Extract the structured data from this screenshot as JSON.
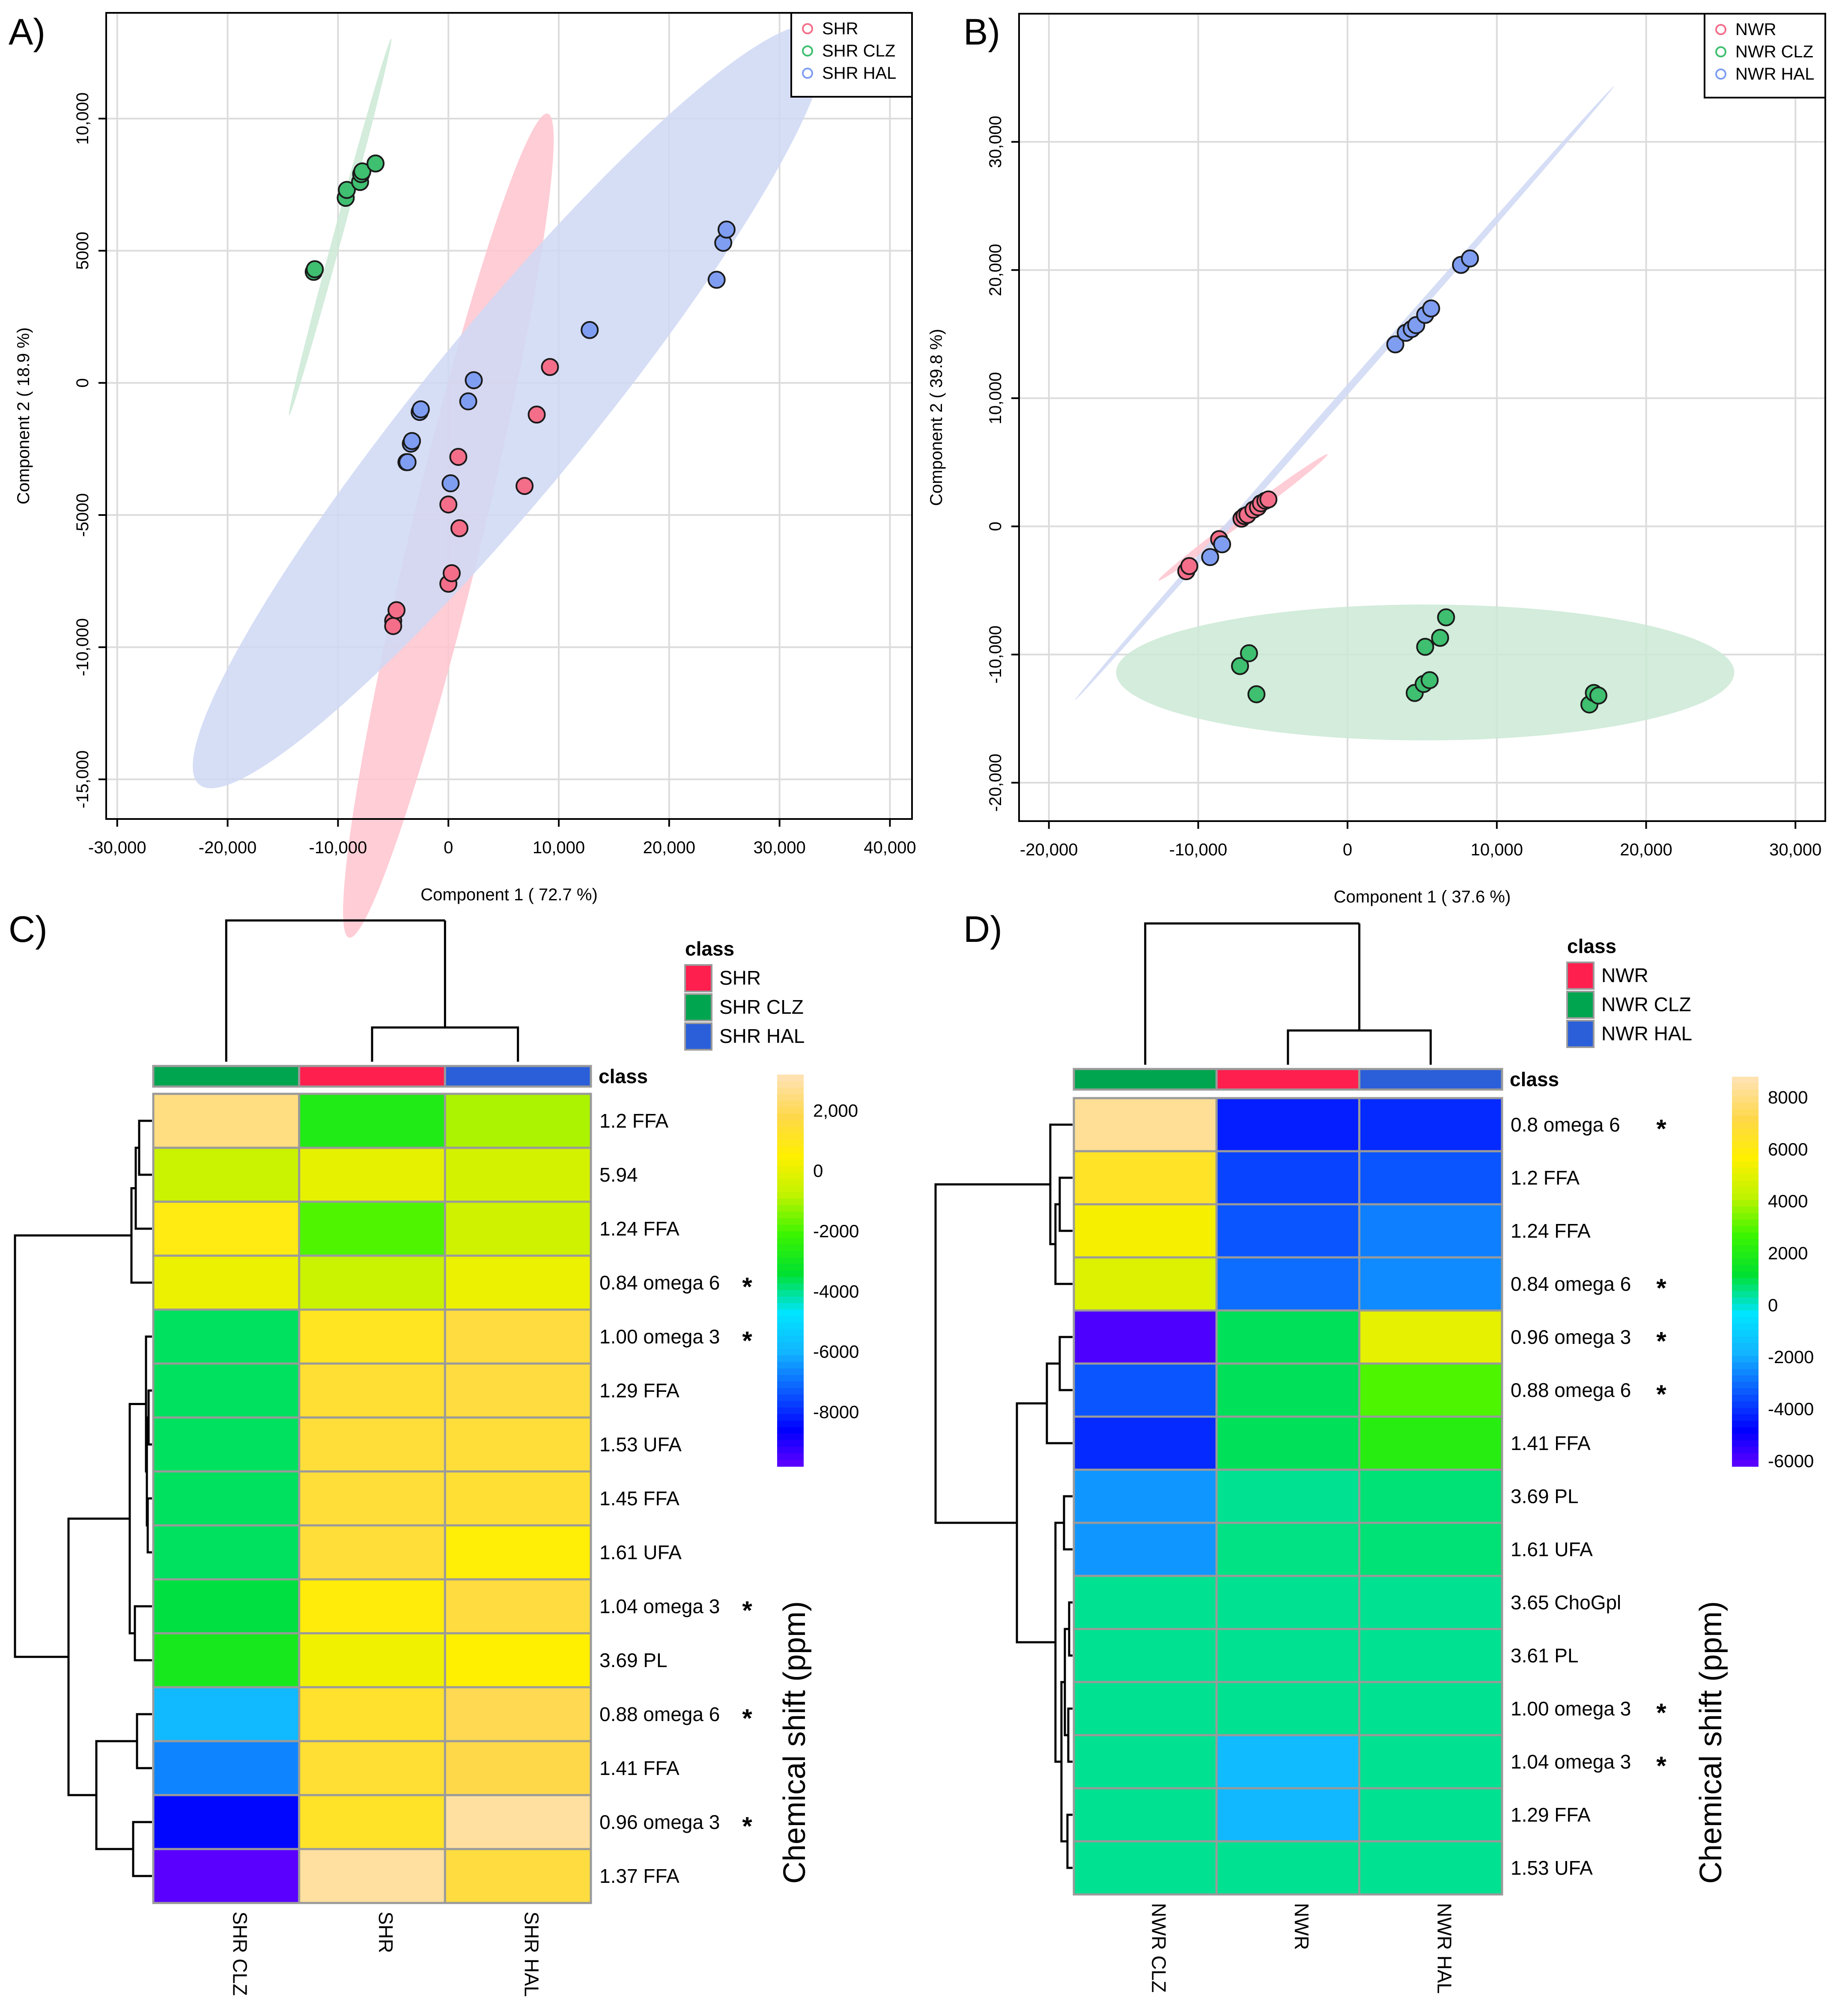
{
  "colors": {
    "red": "#ff1f4e",
    "green": "#00a54f",
    "blue": "#2b5fd9",
    "red_pt": "#f46e8a",
    "green_pt": "#3fbf70",
    "blue_pt": "#7f9ef2",
    "red_ell": "#ffc4cf",
    "green_ell": "#cbe9d5",
    "blue_ell": "#cfd8f4",
    "heat": [
      "#6a00ff",
      "#0000ff",
      "#0b5bff",
      "#12b5ff",
      "#00e5ff",
      "#00e030",
      "#3bf500",
      "#bff300",
      "#fff000",
      "#ffd84a",
      "#ffe2b0"
    ]
  },
  "chart_data": [
    {
      "panel": "A)",
      "type": "scatter",
      "xlabel": "Component 1 ( 72.7 %)",
      "ylabel": "Component 2 ( 18.9 %)",
      "xlim": [
        -31000,
        42000
      ],
      "ylim": [
        -16500,
        14000
      ],
      "xticks": [
        -30000,
        -20000,
        -10000,
        0,
        10000,
        20000,
        30000,
        40000
      ],
      "xtick_labels": [
        "-30,000",
        "-20,000",
        "-10,000",
        "0",
        "10,000",
        "20,000",
        "30,000",
        "40,000"
      ],
      "yticks": [
        -15000,
        -10000,
        -5000,
        0,
        5000,
        10000
      ],
      "ytick_labels": [
        "-15,000",
        "-10,000",
        "-5000",
        "0",
        "5000",
        "10,000"
      ],
      "legend_position": "top-right",
      "series": [
        {
          "name": "SHR",
          "color": "#f46e8a",
          "points": [
            [
              -5000,
              -9000
            ],
            [
              -5000,
              -9200
            ],
            [
              -4700,
              -8600
            ],
            [
              0,
              -7600
            ],
            [
              300,
              -7200
            ],
            [
              1000,
              -5500
            ],
            [
              0,
              -4600
            ],
            [
              900,
              -2800
            ],
            [
              6900,
              -3900
            ],
            [
              8000,
              -1200
            ],
            [
              9200,
              600
            ]
          ],
          "ellipse": {
            "center": [
              0,
              -5400
            ],
            "radius_along": 18000,
            "radius_across": 2900,
            "angle_deg": 60
          }
        },
        {
          "name": "SHR CLZ",
          "color": "#3fbf70",
          "points": [
            [
              -12200,
              4200
            ],
            [
              -12100,
              4300
            ],
            [
              -9300,
              7000
            ],
            [
              -9200,
              7300
            ],
            [
              -8000,
              7600
            ],
            [
              -7900,
              7900
            ],
            [
              -7800,
              8000
            ],
            [
              -6600,
              8300
            ]
          ],
          "ellipse": {
            "center": [
              -9800,
              5900
            ],
            "radius_along": 8500,
            "radius_across": 350,
            "angle_deg": 57
          }
        },
        {
          "name": "SHR HAL",
          "color": "#7f9ef2",
          "points": [
            [
              -3800,
              -3000
            ],
            [
              -3700,
              -3000
            ],
            [
              -3400,
              -2300
            ],
            [
              -3300,
              -2200
            ],
            [
              -2600,
              -1100
            ],
            [
              -2500,
              -1000
            ],
            [
              200,
              -3800
            ],
            [
              1800,
              -700
            ],
            [
              2300,
              100
            ],
            [
              12800,
              2000
            ],
            [
              24300,
              3900
            ],
            [
              24900,
              5300
            ],
            [
              25200,
              5800
            ]
          ],
          "ellipse": {
            "center": [
              5500,
              -900
            ],
            "radius_along": 31500,
            "radius_across": 4400,
            "angle_deg": 27
          }
        }
      ]
    },
    {
      "panel": "B)",
      "type": "scatter",
      "xlabel": "Component 1 ( 37.6 %)",
      "ylabel": "Component 2 ( 39.8 %)",
      "xlim": [
        -22000,
        32000
      ],
      "ylim": [
        -23000,
        40000
      ],
      "xticks": [
        -20000,
        -10000,
        0,
        10000,
        20000,
        30000
      ],
      "xtick_labels": [
        "-20,000",
        "-10,000",
        "0",
        "10,000",
        "20,000",
        "30,000"
      ],
      "yticks": [
        -20000,
        -10000,
        0,
        10000,
        20000,
        30000
      ],
      "ytick_labels": [
        "-20,000",
        "-10,000",
        "0",
        "10,000",
        "20,000",
        "30,000"
      ],
      "legend_position": "top-right",
      "series": [
        {
          "name": "NWR",
          "color": "#f46e8a",
          "points": [
            [
              -10800,
              -3500
            ],
            [
              -10600,
              -3100
            ],
            [
              -8600,
              -1000
            ],
            [
              -7100,
              600
            ],
            [
              -6900,
              800
            ],
            [
              -6700,
              900
            ],
            [
              -6300,
              1300
            ],
            [
              -6000,
              1500
            ],
            [
              -5800,
              1800
            ],
            [
              -5500,
              2000
            ],
            [
              -5300,
              2100
            ]
          ],
          "ellipse": {
            "center": [
              -7000,
              700
            ],
            "radius_along": 7500,
            "radius_across": 350,
            "angle_deg": 41
          }
        },
        {
          "name": "NWR CLZ",
          "color": "#3fbf70",
          "points": [
            [
              -7200,
              -10900
            ],
            [
              -6600,
              -9900
            ],
            [
              -6100,
              -13100
            ],
            [
              4500,
              -13000
            ],
            [
              5100,
              -12300
            ],
            [
              5500,
              -12000
            ],
            [
              5200,
              -9400
            ],
            [
              6200,
              -8700
            ],
            [
              6600,
              -7100
            ],
            [
              16200,
              -13900
            ],
            [
              16500,
              -13000
            ],
            [
              16800,
              -13200
            ]
          ],
          "ellipse": {
            "center": [
              5200,
              -11400
            ],
            "radius_along": 20700,
            "radius_across": 5300,
            "angle_deg": 0
          }
        },
        {
          "name": "NWR HAL",
          "color": "#7f9ef2",
          "points": [
            [
              -9200,
              -2400
            ],
            [
              -8400,
              -1400
            ],
            [
              3200,
              14200
            ],
            [
              3900,
              15100
            ],
            [
              4300,
              15400
            ],
            [
              4600,
              15700
            ],
            [
              5200,
              16500
            ],
            [
              5600,
              17000
            ],
            [
              7600,
              20400
            ],
            [
              8200,
              20900
            ]
          ],
          "ellipse": {
            "center": [
              -200,
              10400
            ],
            "radius_along": 30000,
            "radius_across": 250,
            "angle_deg": 53
          }
        }
      ]
    },
    {
      "panel": "C)",
      "type": "heatmap",
      "class_title": "class",
      "legend_entries": [
        {
          "name": "SHR",
          "color": "#ff1f4e"
        },
        {
          "name": "SHR CLZ",
          "color": "#00a54f"
        },
        {
          "name": "SHR HAL",
          "color": "#2b5fd9"
        }
      ],
      "columns": [
        "SHR CLZ",
        "SHR",
        "SHR HAL"
      ],
      "column_classes": [
        "#00a54f",
        "#ff1f4e",
        "#2b5fd9"
      ],
      "rows": [
        "1.2 FFA",
        "5.94",
        "1.24 FFA",
        "0.84 omega 6",
        "1.00 omega 3",
        "1.29 FFA",
        "1.53 UFA",
        "1.45 FFA",
        "1.61 UFA",
        "1.04 omega 3",
        "3.69 PL",
        "0.88 omega 6",
        "1.41 FFA",
        "0.96 omega 3",
        "1.37 FFA"
      ],
      "significant": [
        false,
        false,
        false,
        true,
        true,
        false,
        false,
        false,
        false,
        true,
        false,
        true,
        false,
        true,
        false
      ],
      "values": [
        [
          2600,
          -2600,
          -900
        ],
        [
          -500,
          100,
          -300
        ],
        [
          900,
          -1800,
          -400
        ],
        [
          200,
          -500,
          200
        ],
        [
          -3600,
          1200,
          1700
        ],
        [
          -3600,
          1500,
          1700
        ],
        [
          -3600,
          1600,
          1600
        ],
        [
          -3600,
          1600,
          1500
        ],
        [
          -3600,
          1600,
          700
        ],
        [
          -3400,
          800,
          1700
        ],
        [
          -2800,
          300,
          600
        ],
        [
          -5800,
          1400,
          2000
        ],
        [
          -6600,
          1500,
          1900
        ],
        [
          -8400,
          1300,
          3000
        ],
        [
          -9600,
          3000,
          1700
        ]
      ],
      "colorbar": {
        "min": -9800,
        "max": 3200,
        "ticks": [
          2000,
          0,
          -2000,
          -4000,
          -6000,
          -8000
        ],
        "tick_labels": [
          "2,000",
          "0",
          "-2000",
          "-4000",
          "-6000",
          "-8000"
        ]
      },
      "ylabel": "Chemical shift (ppm)",
      "col_dendrogram": {
        "merge_groups": [
          [
            1,
            2
          ],
          [
            0,
            "12"
          ]
        ]
      },
      "row_dendrogram": "hierarchical"
    },
    {
      "panel": "D)",
      "type": "heatmap",
      "class_title": "class",
      "legend_entries": [
        {
          "name": "NWR",
          "color": "#ff1f4e"
        },
        {
          "name": "NWR CLZ",
          "color": "#00a54f"
        },
        {
          "name": "NWR HAL",
          "color": "#2b5fd9"
        }
      ],
      "columns": [
        "NWR CLZ",
        "NWR",
        "NWR HAL"
      ],
      "column_classes": [
        "#00a54f",
        "#ff1f4e",
        "#2b5fd9"
      ],
      "rows": [
        "0.8 omega 6",
        "1.2 FFA",
        "1.24 FFA",
        "0.84 omega 6",
        "0.96 omega 3",
        "0.88 omega 6",
        "1.41 FFA",
        "3.69 PL",
        "1.61 UFA",
        "3.65 ChoGpl",
        "3.61 PL",
        "1.00 omega 3",
        "1.04 omega 3",
        "1.29 FFA",
        "1.53 UFA"
      ],
      "significant": [
        true,
        false,
        false,
        true,
        true,
        true,
        false,
        false,
        false,
        false,
        false,
        true,
        true,
        false,
        false
      ],
      "values": [
        [
          8400,
          -4200,
          -4000
        ],
        [
          6600,
          -3600,
          -3300
        ],
        [
          5600,
          -3300,
          -2600
        ],
        [
          5000,
          -2900,
          -2400
        ],
        [
          -5800,
          1000,
          5200
        ],
        [
          -3300,
          1000,
          3000
        ],
        [
          -4000,
          1000,
          2300
        ],
        [
          -2200,
          600,
          800
        ],
        [
          -2200,
          700,
          800
        ],
        [
          600,
          600,
          600
        ],
        [
          600,
          600,
          600
        ],
        [
          600,
          600,
          600
        ],
        [
          600,
          -1500,
          600
        ],
        [
          600,
          -1600,
          600
        ],
        [
          600,
          600,
          600
        ]
      ],
      "colorbar": {
        "min": -6200,
        "max": 8800,
        "ticks": [
          8000,
          6000,
          4000,
          2000,
          0,
          -2000,
          -4000,
          -6000
        ],
        "tick_labels": [
          "8000",
          "6000",
          "4000",
          "2000",
          "0",
          "-2000",
          "-4000",
          "-6000"
        ]
      },
      "ylabel": "Chemical shift (ppm)",
      "col_dendrogram": {
        "merge_groups": [
          [
            1,
            2
          ],
          [
            0,
            "12"
          ]
        ]
      },
      "row_dendrogram": "hierarchical"
    }
  ]
}
